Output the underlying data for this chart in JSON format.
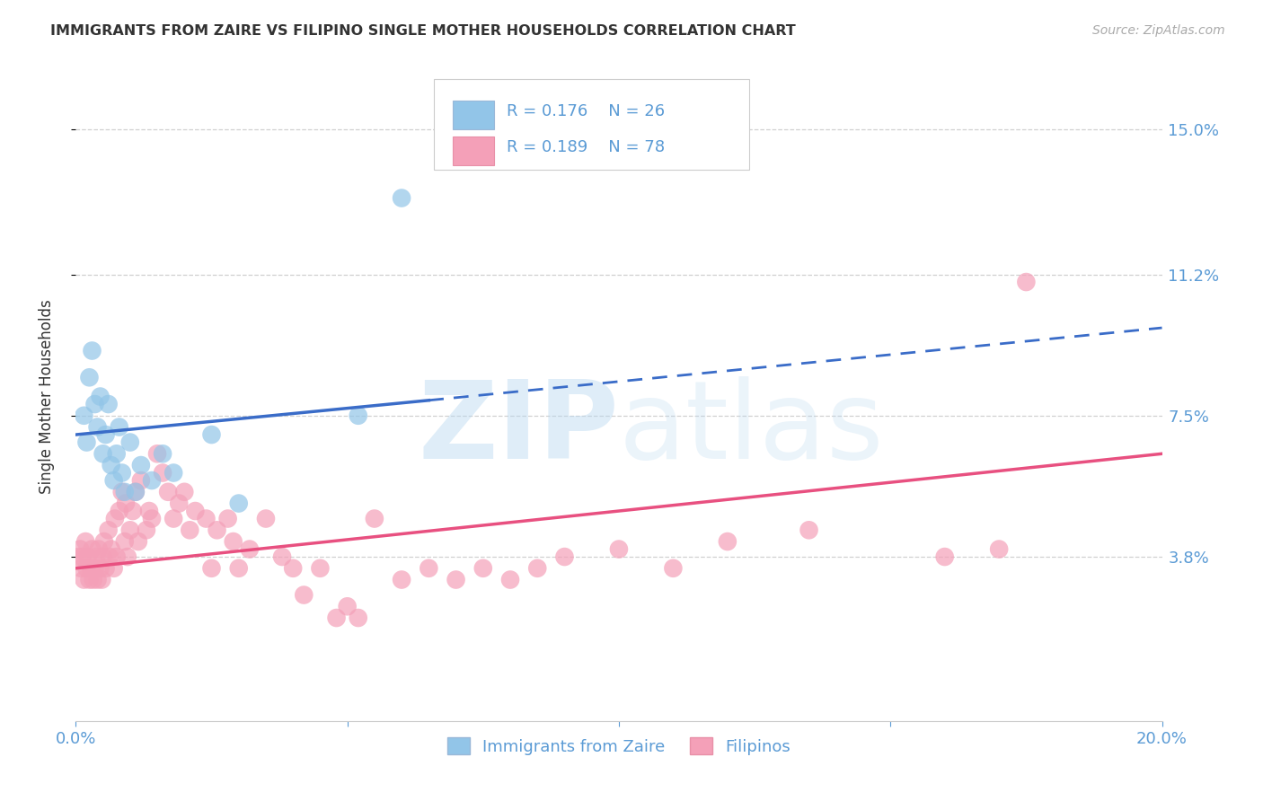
{
  "title": "IMMIGRANTS FROM ZAIRE VS FILIPINO SINGLE MOTHER HOUSEHOLDS CORRELATION CHART",
  "source": "Source: ZipAtlas.com",
  "ylabel": "Single Mother Households",
  "xlim": [
    0.0,
    20.0
  ],
  "ylim": [
    -0.5,
    16.5
  ],
  "yticks": [
    3.8,
    7.5,
    11.2,
    15.0
  ],
  "xticks": [
    0.0,
    5.0,
    10.0,
    15.0,
    20.0
  ],
  "xtick_labels": [
    "0.0%",
    "",
    "",
    "",
    "20.0%"
  ],
  "ytick_labels": [
    "3.8%",
    "7.5%",
    "11.2%",
    "15.0%"
  ],
  "legend_r1": "0.176",
  "legend_n1": "26",
  "legend_r2": "0.189",
  "legend_n2": "78",
  "legend_label1": "Immigrants from Zaire",
  "legend_label2": "Filipinos",
  "blue_color": "#92C5E8",
  "pink_color": "#F4A0B8",
  "blue_line_color": "#3A6CC8",
  "pink_line_color": "#E85080",
  "axis_color": "#5B9BD5",
  "grid_color": "#d0d0d0",
  "watermark_color": "#b8d8f0",
  "blue_line_start_x": 0.0,
  "blue_line_start_y": 7.0,
  "blue_line_solid_end_x": 6.5,
  "blue_line_solid_end_y": 7.9,
  "blue_line_dash_end_x": 20.0,
  "blue_line_dash_end_y": 9.8,
  "pink_line_start_x": 0.0,
  "pink_line_start_y": 3.5,
  "pink_line_end_x": 20.0,
  "pink_line_end_y": 6.5,
  "blue_scatter_x": [
    0.15,
    0.2,
    0.25,
    0.3,
    0.35,
    0.4,
    0.45,
    0.5,
    0.55,
    0.6,
    0.65,
    0.7,
    0.75,
    0.8,
    0.85,
    0.9,
    1.0,
    1.1,
    1.2,
    1.4,
    1.6,
    1.8,
    2.5,
    3.0,
    5.2,
    6.0
  ],
  "blue_scatter_y": [
    7.5,
    6.8,
    8.5,
    9.2,
    7.8,
    7.2,
    8.0,
    6.5,
    7.0,
    7.8,
    6.2,
    5.8,
    6.5,
    7.2,
    6.0,
    5.5,
    6.8,
    5.5,
    6.2,
    5.8,
    6.5,
    6.0,
    7.0,
    5.2,
    7.5,
    13.2
  ],
  "pink_scatter_x": [
    0.05,
    0.08,
    0.1,
    0.12,
    0.15,
    0.18,
    0.2,
    0.22,
    0.25,
    0.28,
    0.3,
    0.32,
    0.35,
    0.38,
    0.4,
    0.42,
    0.45,
    0.48,
    0.5,
    0.52,
    0.55,
    0.6,
    0.62,
    0.65,
    0.7,
    0.72,
    0.75,
    0.8,
    0.85,
    0.9,
    0.92,
    0.95,
    1.0,
    1.05,
    1.1,
    1.15,
    1.2,
    1.3,
    1.35,
    1.4,
    1.5,
    1.6,
    1.7,
    1.8,
    1.9,
    2.0,
    2.1,
    2.2,
    2.4,
    2.5,
    2.6,
    2.8,
    2.9,
    3.0,
    3.2,
    3.5,
    3.8,
    4.0,
    4.2,
    4.5,
    4.8,
    5.0,
    5.2,
    5.5,
    6.0,
    6.5,
    7.0,
    7.5,
    8.0,
    8.5,
    9.0,
    10.0,
    11.0,
    12.0,
    13.5,
    16.0,
    17.0,
    17.5
  ],
  "pink_scatter_y": [
    3.8,
    4.0,
    3.5,
    3.8,
    3.2,
    4.2,
    3.5,
    3.8,
    3.2,
    3.5,
    4.0,
    3.2,
    3.5,
    3.8,
    3.2,
    4.0,
    3.5,
    3.2,
    3.8,
    4.2,
    3.5,
    4.5,
    3.8,
    4.0,
    3.5,
    4.8,
    3.8,
    5.0,
    5.5,
    4.2,
    5.2,
    3.8,
    4.5,
    5.0,
    5.5,
    4.2,
    5.8,
    4.5,
    5.0,
    4.8,
    6.5,
    6.0,
    5.5,
    4.8,
    5.2,
    5.5,
    4.5,
    5.0,
    4.8,
    3.5,
    4.5,
    4.8,
    4.2,
    3.5,
    4.0,
    4.8,
    3.8,
    3.5,
    2.8,
    3.5,
    2.2,
    2.5,
    2.2,
    4.8,
    3.2,
    3.5,
    3.2,
    3.5,
    3.2,
    3.5,
    3.8,
    4.0,
    3.5,
    4.2,
    4.5,
    3.8,
    4.0,
    11.0
  ]
}
